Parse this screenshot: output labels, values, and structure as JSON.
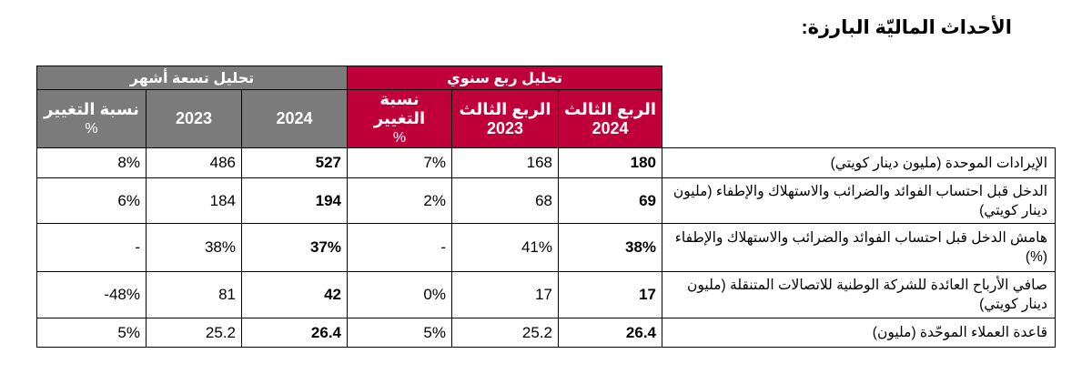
{
  "heading": "الأحداث الماليّة البارزة:",
  "groups": {
    "nine_months": "تحليل تسعة أشهر",
    "quarterly": "تحليل ربع سنوي"
  },
  "columns": {
    "nine_change": [
      "نسبة التغيير",
      "%"
    ],
    "nine_2023": "2023",
    "nine_2024": "2024",
    "q_change": [
      "نسبة التغيير",
      "%"
    ],
    "q3_2023": [
      "الربع الثالث",
      "2023"
    ],
    "q3_2024": [
      "الربع الثالث",
      "2024"
    ]
  },
  "rows": [
    {
      "label": "الإيرادات الموحدة (مليون دينار كويتي)",
      "nine_change": "8%",
      "nine_2023": "486",
      "nine_2024": "527",
      "q_change": "7%",
      "q3_2023": "168",
      "q3_2024": "180"
    },
    {
      "label": "الدخل قبل احتساب الفوائد والضرائب والاستهلاك والإطفاء (مليون دينار كويتي)",
      "nine_change": "6%",
      "nine_2023": "184",
      "nine_2024": "194",
      "q_change": "2%",
      "q3_2023": "68",
      "q3_2024": "69"
    },
    {
      "label": "هامش الدخل قبل احتساب الفوائد والضرائب والاستهلاك والإطفاء (%)",
      "nine_change": "-",
      "nine_2023": "38%",
      "nine_2024": "37%",
      "q_change": "-",
      "q3_2023": "41%",
      "q3_2024": "38%"
    },
    {
      "label": "صافي الأرباح العائدة للشركة الوطنية للاتصالات المتنقلة (مليون دينار كويتي)",
      "nine_change": "-48%",
      "nine_2023": "81",
      "nine_2024": "42",
      "q_change": "0%",
      "q3_2023": "17",
      "q3_2024": "17"
    },
    {
      "label": "قاعدة العملاء الموحّدة (مليون)",
      "nine_change": "5%",
      "nine_2023": "25.2",
      "nine_2024": "26.4",
      "q_change": "5%",
      "q3_2023": "25.2",
      "q3_2024": "26.4"
    }
  ]
}
